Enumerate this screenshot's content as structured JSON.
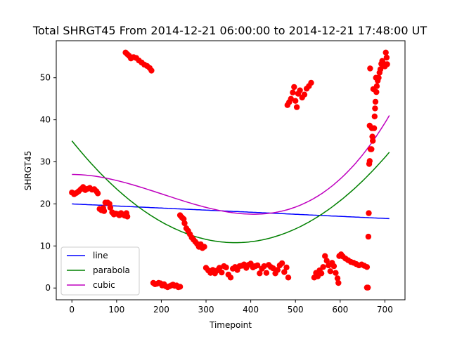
{
  "chart_data": {
    "type": "scatter",
    "title": "Total SHRGT45 From 2014-12-21 06:00:00 to 2014-12-21 17:48:00 UT",
    "xlabel": "Timepoint",
    "ylabel": "SHRGT45",
    "xlim": [
      -35,
      745
    ],
    "ylim": [
      -2.8,
      58.8
    ],
    "xticks": [
      0,
      100,
      200,
      300,
      400,
      500,
      600,
      700
    ],
    "yticks": [
      0,
      10,
      20,
      30,
      40,
      50
    ],
    "grid": false,
    "legend_position": "lower-left",
    "scatter_color": "#ff0000",
    "scatter_points": [
      [
        0,
        22.7
      ],
      [
        5,
        22.3
      ],
      [
        10,
        22.6
      ],
      [
        15,
        23.0
      ],
      [
        20,
        23.5
      ],
      [
        25,
        24.0
      ],
      [
        30,
        23.3
      ],
      [
        35,
        23.6
      ],
      [
        40,
        23.8
      ],
      [
        45,
        23.4
      ],
      [
        50,
        23.5
      ],
      [
        55,
        23.0
      ],
      [
        58,
        22.5
      ],
      [
        62,
        18.8
      ],
      [
        66,
        18.5
      ],
      [
        70,
        19.0
      ],
      [
        72,
        18.3
      ],
      [
        75,
        20.3
      ],
      [
        80,
        20.3
      ],
      [
        84,
        20.0
      ],
      [
        86,
        19.1
      ],
      [
        90,
        18.0
      ],
      [
        94,
        17.5
      ],
      [
        98,
        17.7
      ],
      [
        102,
        17.6
      ],
      [
        106,
        17.3
      ],
      [
        110,
        17.8
      ],
      [
        114,
        17.5
      ],
      [
        118,
        17.2
      ],
      [
        122,
        17.8
      ],
      [
        124,
        17.0
      ],
      [
        120,
        56.0
      ],
      [
        124,
        55.6
      ],
      [
        128,
        55.2
      ],
      [
        132,
        54.6
      ],
      [
        138,
        54.9
      ],
      [
        144,
        54.7
      ],
      [
        150,
        54.1
      ],
      [
        156,
        53.6
      ],
      [
        162,
        53.1
      ],
      [
        168,
        52.8
      ],
      [
        174,
        52.3
      ],
      [
        178,
        51.7
      ],
      [
        182,
        1.2
      ],
      [
        186,
        0.9
      ],
      [
        190,
        1.0
      ],
      [
        194,
        1.2
      ],
      [
        198,
        1.1
      ],
      [
        202,
        0.6
      ],
      [
        206,
        0.9
      ],
      [
        210,
        0.4
      ],
      [
        214,
        0.2
      ],
      [
        218,
        0.4
      ],
      [
        222,
        0.6
      ],
      [
        226,
        0.8
      ],
      [
        230,
        0.5
      ],
      [
        234,
        0.6
      ],
      [
        238,
        0.2
      ],
      [
        242,
        0.3
      ],
      [
        242,
        17.3
      ],
      [
        246,
        16.8
      ],
      [
        250,
        16.4
      ],
      [
        252,
        15.4
      ],
      [
        256,
        14.2
      ],
      [
        260,
        13.6
      ],
      [
        264,
        12.8
      ],
      [
        268,
        12.0
      ],
      [
        272,
        11.5
      ],
      [
        276,
        11.0
      ],
      [
        280,
        10.5
      ],
      [
        284,
        9.8
      ],
      [
        288,
        10.4
      ],
      [
        292,
        9.5
      ],
      [
        296,
        9.8
      ],
      [
        300,
        4.8
      ],
      [
        305,
        4.2
      ],
      [
        310,
        3.6
      ],
      [
        315,
        4.3
      ],
      [
        320,
        3.5
      ],
      [
        325,
        4.2
      ],
      [
        330,
        4.8
      ],
      [
        335,
        3.7
      ],
      [
        340,
        5.2
      ],
      [
        345,
        4.9
      ],
      [
        350,
        3.2
      ],
      [
        355,
        2.5
      ],
      [
        360,
        4.6
      ],
      [
        365,
        5.0
      ],
      [
        370,
        4.3
      ],
      [
        375,
        5.2
      ],
      [
        380,
        5.3
      ],
      [
        385,
        5.6
      ],
      [
        390,
        4.8
      ],
      [
        395,
        5.5
      ],
      [
        400,
        5.8
      ],
      [
        405,
        4.9
      ],
      [
        410,
        5.2
      ],
      [
        415,
        5.4
      ],
      [
        420,
        3.5
      ],
      [
        425,
        4.6
      ],
      [
        430,
        5.2
      ],
      [
        435,
        3.6
      ],
      [
        440,
        5.5
      ],
      [
        445,
        5.0
      ],
      [
        450,
        4.7
      ],
      [
        455,
        3.5
      ],
      [
        460,
        4.3
      ],
      [
        465,
        5.4
      ],
      [
        470,
        5.9
      ],
      [
        475,
        3.8
      ],
      [
        480,
        4.9
      ],
      [
        484,
        2.5
      ],
      [
        482,
        43.5
      ],
      [
        486,
        44.2
      ],
      [
        490,
        45.0
      ],
      [
        494,
        46.5
      ],
      [
        497,
        47.8
      ],
      [
        500,
        44.5
      ],
      [
        503,
        43.0
      ],
      [
        506,
        46.2
      ],
      [
        510,
        47.0
      ],
      [
        515,
        45.3
      ],
      [
        520,
        46.0
      ],
      [
        525,
        47.4
      ],
      [
        530,
        48.0
      ],
      [
        535,
        48.8
      ],
      [
        542,
        2.5
      ],
      [
        546,
        3.6
      ],
      [
        550,
        2.8
      ],
      [
        554,
        4.2
      ],
      [
        558,
        3.5
      ],
      [
        562,
        5.0
      ],
      [
        566,
        7.6
      ],
      [
        570,
        6.5
      ],
      [
        574,
        5.4
      ],
      [
        578,
        4.0
      ],
      [
        582,
        6.0
      ],
      [
        586,
        5.2
      ],
      [
        590,
        3.6
      ],
      [
        594,
        2.3
      ],
      [
        596,
        1.2
      ],
      [
        598,
        7.6
      ],
      [
        602,
        8.0
      ],
      [
        606,
        7.5
      ],
      [
        612,
        7.0
      ],
      [
        618,
        6.6
      ],
      [
        624,
        6.2
      ],
      [
        630,
        6.0
      ],
      [
        636,
        5.7
      ],
      [
        642,
        5.4
      ],
      [
        648,
        5.6
      ],
      [
        654,
        5.3
      ],
      [
        660,
        5.0
      ],
      [
        660,
        0.1
      ],
      [
        662,
        0.1
      ],
      [
        663,
        12.2
      ],
      [
        664,
        17.8
      ],
      [
        665,
        29.5
      ],
      [
        666,
        30.2
      ],
      [
        666,
        38.6
      ],
      [
        668,
        33.0
      ],
      [
        670,
        33.0
      ],
      [
        671,
        38.0
      ],
      [
        672,
        36.0
      ],
      [
        673,
        35.0
      ],
      [
        674,
        47.3
      ],
      [
        676,
        38.0
      ],
      [
        677,
        40.8
      ],
      [
        678,
        42.7
      ],
      [
        679,
        44.3
      ],
      [
        680,
        50.0
      ],
      [
        681,
        46.6
      ],
      [
        682,
        48.0
      ],
      [
        684,
        49.3
      ],
      [
        686,
        50.0
      ],
      [
        688,
        51.2
      ],
      [
        690,
        52.0
      ],
      [
        692,
        53.3
      ],
      [
        694,
        54.0
      ],
      [
        696,
        53.5
      ],
      [
        698,
        53.0
      ],
      [
        700,
        52.7
      ],
      [
        702,
        56.0
      ],
      [
        704,
        54.8
      ],
      [
        705,
        53.2
      ],
      [
        667,
        52.2
      ]
    ],
    "series": [
      {
        "name": "line",
        "color": "#0000ff",
        "type": "line",
        "coefficients": [
          20.0,
          -0.00493
        ]
      },
      {
        "name": "parabola",
        "color": "#008000",
        "type": "line",
        "coefficients": [
          35.0,
          -0.1325,
          0.00018125
        ]
      },
      {
        "name": "cubic",
        "color": "#bf00bf",
        "type": "line",
        "coefficients": [
          27.0,
          0.0,
          -0.000171,
          2.8e-07
        ]
      }
    ],
    "fit_x_range": [
      0,
      710
    ]
  }
}
